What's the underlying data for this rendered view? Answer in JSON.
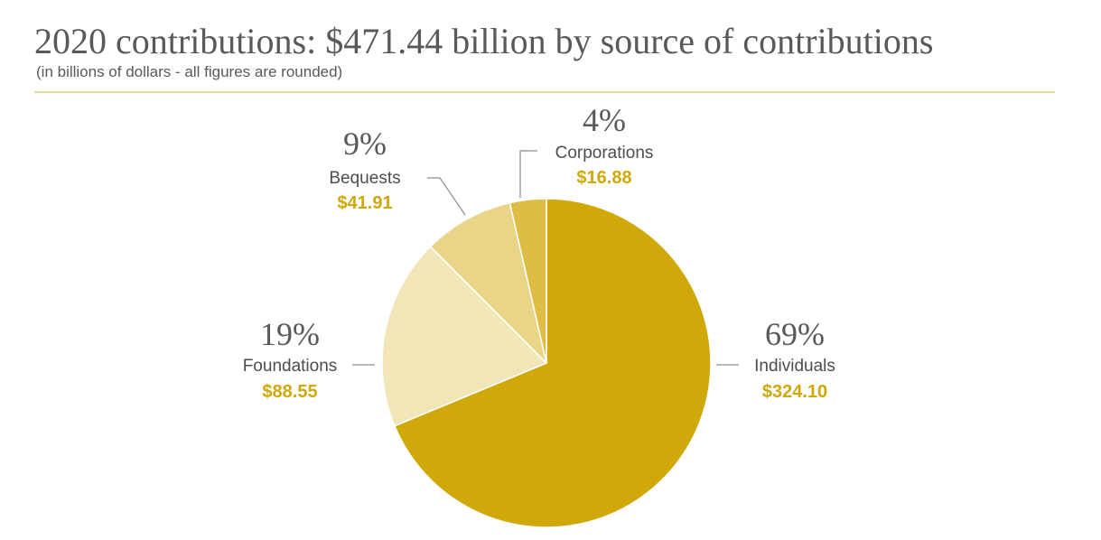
{
  "title": "2020 contributions: $471.44 billion by source of contributions",
  "subtitle": "(in billions of dollars - all figures are rounded)",
  "chart_data": {
    "type": "pie",
    "title": "2020 contributions: $471.44 billion by source of contributions",
    "subtitle": "(in billions of dollars - all figures are rounded)",
    "unit": "billions of dollars",
    "total": 471.44,
    "slices": [
      {
        "label": "Individuals",
        "value": 324.1,
        "value_label": "$324.10",
        "percent_label": "69%",
        "color": "#d1a80a"
      },
      {
        "label": "Foundations",
        "value": 88.55,
        "value_label": "$88.55",
        "percent_label": "19%",
        "color": "#f1e6b7"
      },
      {
        "label": "Bequests",
        "value": 41.91,
        "value_label": "$41.91",
        "percent_label": "9%",
        "color": "#e8d587"
      },
      {
        "label": "Corporations",
        "value": 16.88,
        "value_label": "$16.88",
        "percent_label": "4%",
        "color": "#dfbd45"
      }
    ],
    "value_label_color": "#d1a80a"
  }
}
